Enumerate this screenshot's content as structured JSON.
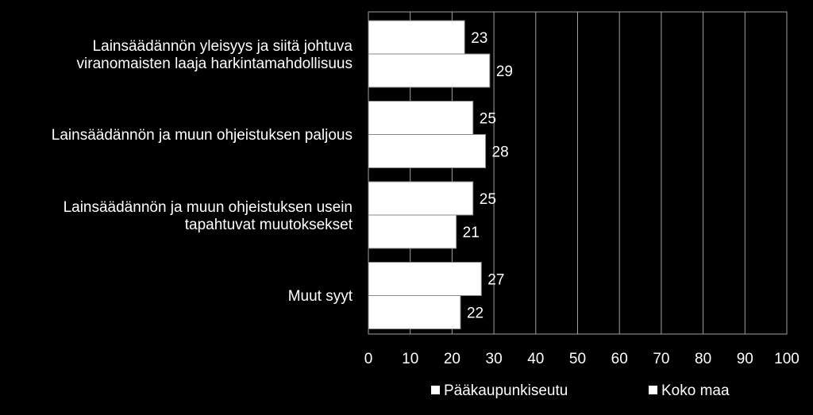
{
  "chart_data": {
    "type": "hbar",
    "categories": [
      "Lainsäädännön yleisyys ja siitä johtuva\nviranomaisten laaja harkintamahdollisuus",
      "Lainsäädännön ja muun ohjeistuksen paljous",
      "Lainsäädännön ja muun ohjeistuksen usein\ntapahtuvat muutoksekset",
      "Muut syyt"
    ],
    "series": [
      {
        "name": "Pääkaupunkiseutu",
        "color": "#ffffff",
        "values": [
          23,
          25,
          25,
          27
        ]
      },
      {
        "name": "Koko maa",
        "color": "#ffffff",
        "values": [
          29,
          28,
          21,
          22
        ]
      }
    ],
    "xlim": [
      0,
      100
    ],
    "xticks": [
      0,
      10,
      20,
      30,
      40,
      50,
      60,
      70,
      80,
      90,
      100
    ],
    "grid": true
  }
}
